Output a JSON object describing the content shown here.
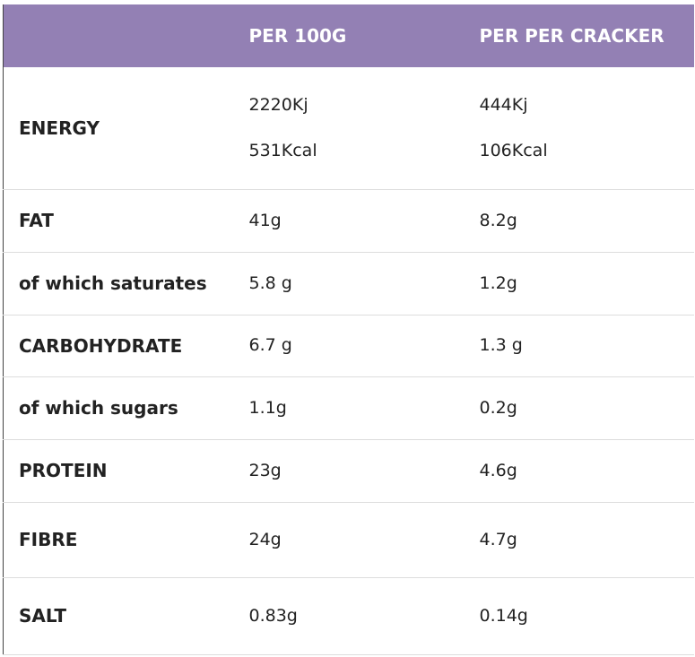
{
  "table": {
    "columns": [
      "PER 100G",
      "PER PER CRACKER"
    ],
    "rows": [
      {
        "label": "ENERGY",
        "per_100g": [
          "2220Kj",
          "531Kcal"
        ],
        "per_cracker": [
          "444Kj",
          "106Kcal"
        ]
      },
      {
        "label": "FAT",
        "per_100g": [
          "41g"
        ],
        "per_cracker": [
          "8.2g"
        ]
      },
      {
        "label": "of which saturates",
        "per_100g": [
          "5.8 g"
        ],
        "per_cracker": [
          "1.2g"
        ]
      },
      {
        "label": "CARBOHYDRATE",
        "per_100g": [
          "6.7 g"
        ],
        "per_cracker": [
          "1.3 g"
        ]
      },
      {
        "label": "of which sugars",
        "per_100g": [
          "1.1g"
        ],
        "per_cracker": [
          "0.2g"
        ]
      },
      {
        "label": "PROTEIN",
        "per_100g": [
          "23g"
        ],
        "per_cracker": [
          "4.6g"
        ]
      },
      {
        "label": "FIBRE",
        "per_100g": [
          "24g"
        ],
        "per_cracker": [
          "4.7g"
        ]
      },
      {
        "label": "SALT",
        "per_100g": [
          "0.83g"
        ],
        "per_cracker": [
          "0.14g"
        ]
      }
    ]
  }
}
